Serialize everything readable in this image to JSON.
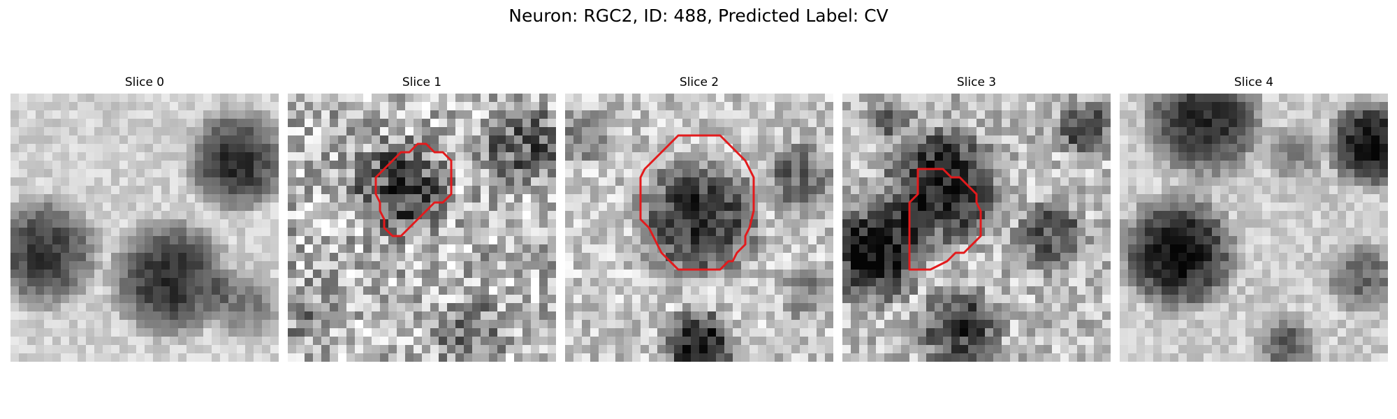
{
  "figure": {
    "title": "Neuron: RGC2, ID: 488, Predicted Label: CV"
  },
  "panels": [
    {
      "title": "Slice 0",
      "has_contour": false
    },
    {
      "title": "Slice 1",
      "has_contour": true
    },
    {
      "title": "Slice 2",
      "has_contour": true
    },
    {
      "title": "Slice 3",
      "has_contour": true
    },
    {
      "title": "Slice 4",
      "has_contour": false
    }
  ],
  "colors": {
    "contour": "#e31a1c",
    "background": "#ffffff"
  }
}
